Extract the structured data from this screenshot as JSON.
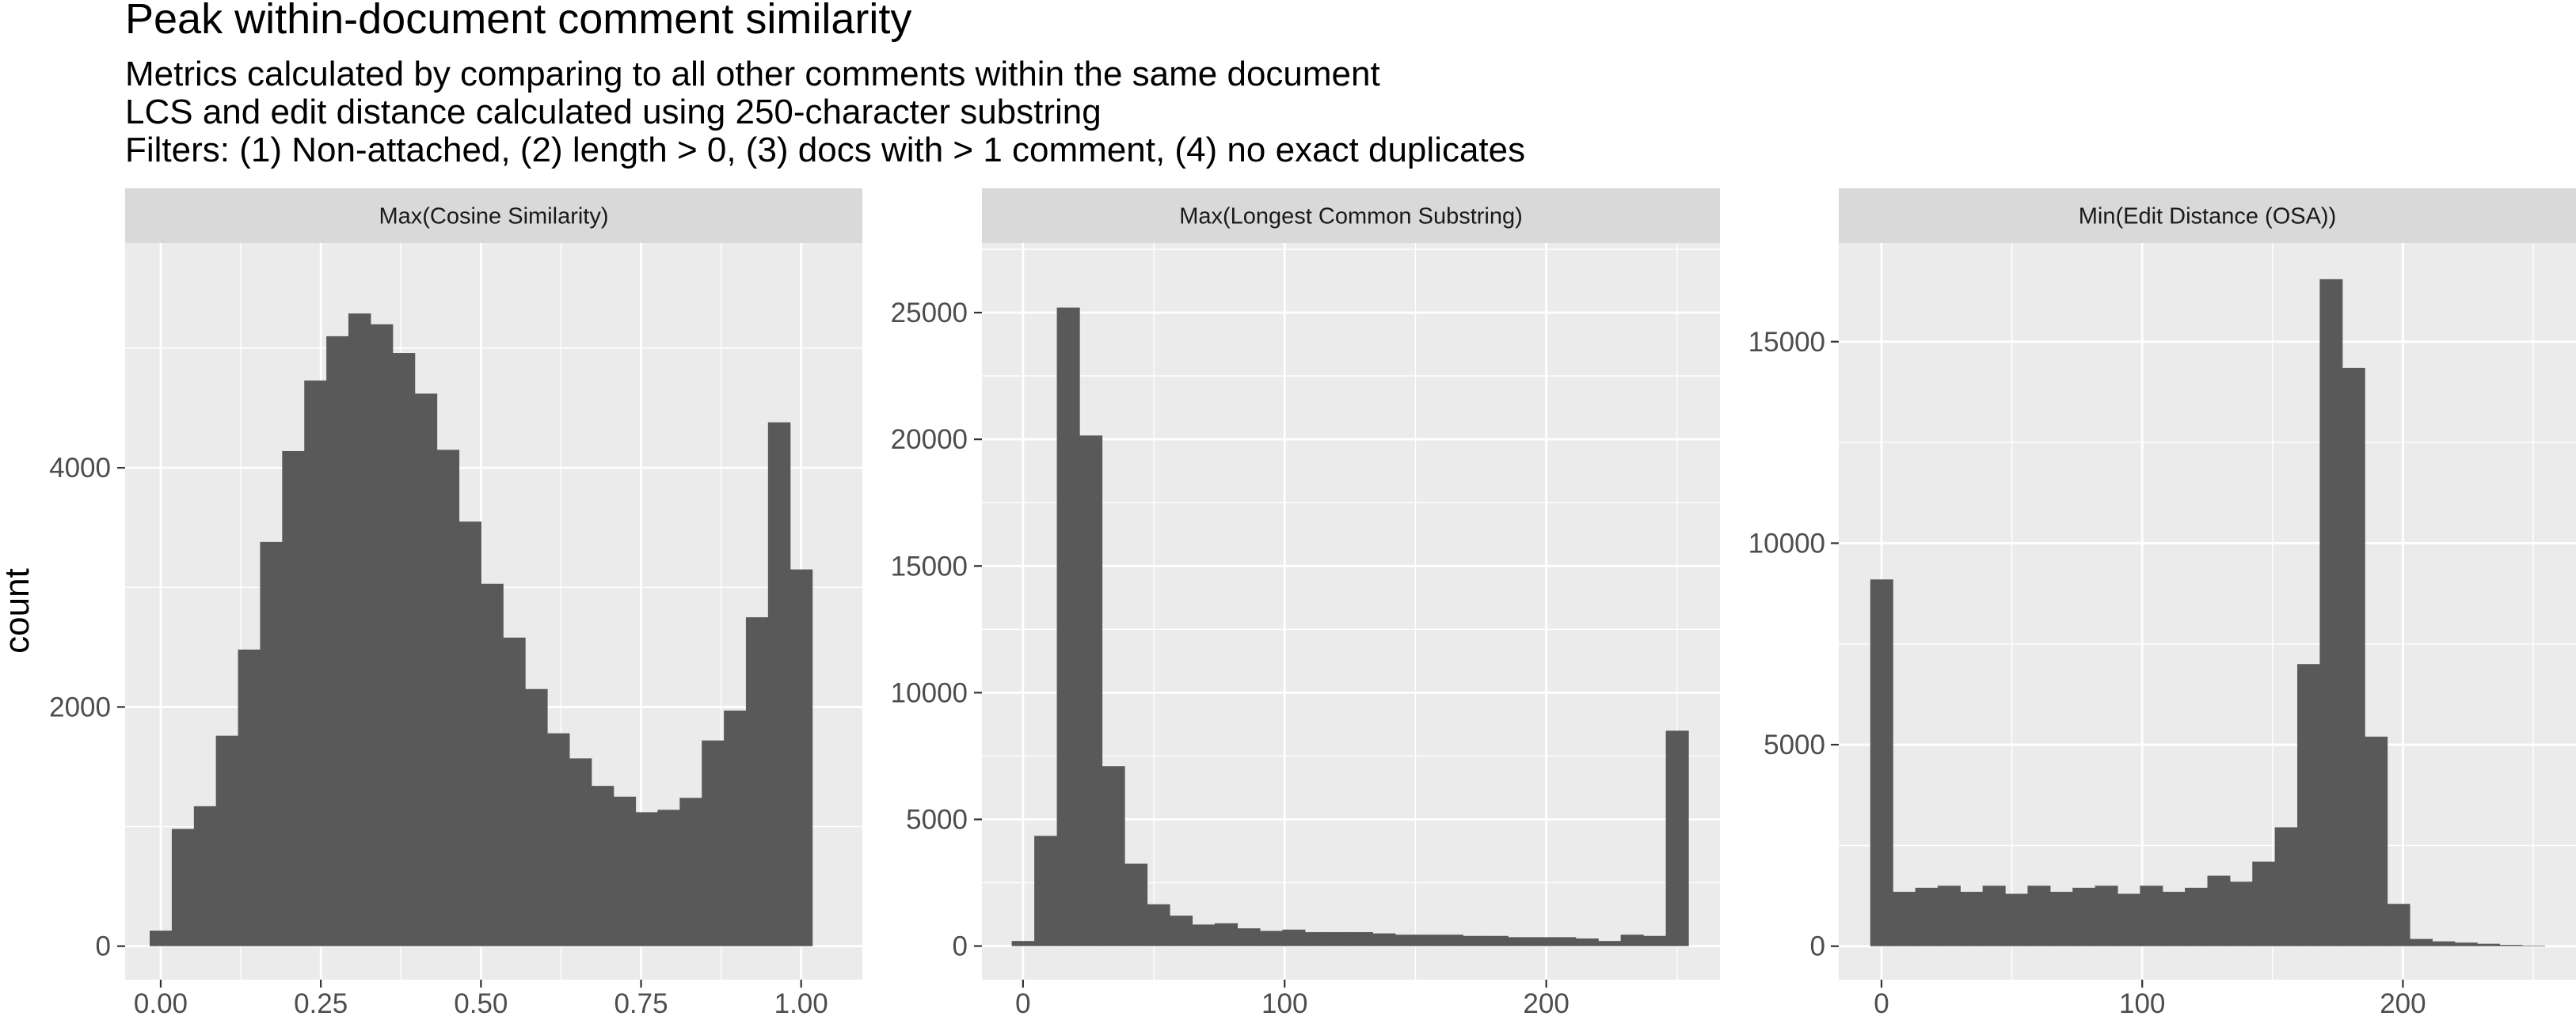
{
  "figure": {
    "title": "Peak within-document comment similarity",
    "subtitle_lines": [
      "Metrics calculated by comparing to all other comments within the same document",
      "LCS and edit distance calculated using 250-character substring",
      "Filters: (1) Non-attached, (2) length > 0, (3) docs with > 1 comment, (4) no exact duplicates"
    ],
    "y_axis_label": "count"
  },
  "colors": {
    "panel_background": "#ebebeb",
    "strip_background": "#d9d9d9",
    "bar_fill": "#595959",
    "gridline": "#ffffff",
    "tick_text": "#4d4d4d"
  },
  "chart_data": [
    {
      "type": "bar",
      "title": "Max(Cosine Similarity)",
      "xlim": [
        -0.0556,
        1.0956
      ],
      "ylim": [
        -280,
        5880
      ],
      "x_ticks": [
        0,
        0.25,
        0.5,
        0.75,
        1
      ],
      "x_tick_labels": [
        "0.00",
        "0.25",
        "0.50",
        "0.75",
        "1.00"
      ],
      "y_ticks": [
        0,
        2000,
        4000
      ],
      "y_tick_labels": [
        "0",
        "2000",
        "4000"
      ],
      "bin_width": 0.0345,
      "bin_centers": [
        0,
        0.0345,
        0.069,
        0.1034,
        0.1379,
        0.1724,
        0.2069,
        0.2414,
        0.2759,
        0.3103,
        0.3448,
        0.3793,
        0.4138,
        0.4483,
        0.4828,
        0.5172,
        0.5517,
        0.5862,
        0.6207,
        0.6552,
        0.6897,
        0.7241,
        0.7586,
        0.7931,
        0.8276,
        0.8621,
        0.8966,
        0.931,
        0.9655,
        1
      ],
      "values": [
        130,
        980,
        1170,
        1760,
        2480,
        3380,
        4140,
        4730,
        5100,
        5290,
        5200,
        4960,
        4620,
        4150,
        3550,
        3030,
        2580,
        2150,
        1780,
        1570,
        1340,
        1250,
        1120,
        1140,
        1240,
        1720,
        1970,
        2750,
        4380,
        3150
      ]
    },
    {
      "type": "bar",
      "title": "Max(Longest Common Substring)",
      "xlim": [
        -15.7,
        266.4
      ],
      "ylim": [
        -1325,
        27750
      ],
      "x_ticks": [
        0,
        100,
        200
      ],
      "x_tick_labels": [
        "0",
        "100",
        "200"
      ],
      "y_ticks": [
        0,
        5000,
        10000,
        15000,
        20000,
        25000
      ],
      "y_tick_labels": [
        "0",
        "5000",
        "10000",
        "15000",
        "20000",
        "25000"
      ],
      "bin_width": 8.62,
      "bin_centers": [
        0,
        8.62,
        17.24,
        25.86,
        34.48,
        43.1,
        51.72,
        60.34,
        68.97,
        77.59,
        86.21,
        94.83,
        103.45,
        112.07,
        120.69,
        129.31,
        137.93,
        146.55,
        155.17,
        163.79,
        172.41,
        181.03,
        189.66,
        198.28,
        206.9,
        215.52,
        224.14,
        232.76,
        241.38,
        250
      ],
      "values": [
        200,
        4350,
        25200,
        20150,
        7100,
        3250,
        1650,
        1200,
        850,
        900,
        700,
        600,
        650,
        550,
        550,
        550,
        500,
        450,
        450,
        450,
        400,
        400,
        350,
        350,
        350,
        300,
        200,
        450,
        400,
        8500
      ]
    },
    {
      "type": "bar",
      "title": "Min(Edit Distance (OSA))",
      "xlim": [
        -16.4,
        266.4
      ],
      "ylim": [
        -830,
        17450
      ],
      "x_ticks": [
        0,
        100,
        200
      ],
      "x_tick_labels": [
        "0",
        "100",
        "200"
      ],
      "y_ticks": [
        0,
        5000,
        10000,
        15000
      ],
      "y_tick_labels": [
        "0",
        "5000",
        "10000",
        "15000"
      ],
      "bin_width": 8.62,
      "bin_centers": [
        0,
        8.62,
        17.24,
        25.86,
        34.48,
        43.1,
        51.72,
        60.34,
        68.97,
        77.59,
        86.21,
        94.83,
        103.45,
        112.07,
        120.69,
        129.31,
        137.93,
        146.55,
        155.17,
        163.79,
        172.41,
        181.03,
        189.66,
        198.28,
        206.9,
        215.52,
        224.14,
        232.76,
        241.38,
        250
      ],
      "values": [
        9100,
        1350,
        1450,
        1500,
        1350,
        1500,
        1300,
        1500,
        1350,
        1450,
        1500,
        1300,
        1500,
        1350,
        1450,
        1750,
        1600,
        2100,
        2950,
        7000,
        16550,
        14350,
        5200,
        1050,
        180,
        120,
        90,
        60,
        30,
        15
      ]
    }
  ]
}
